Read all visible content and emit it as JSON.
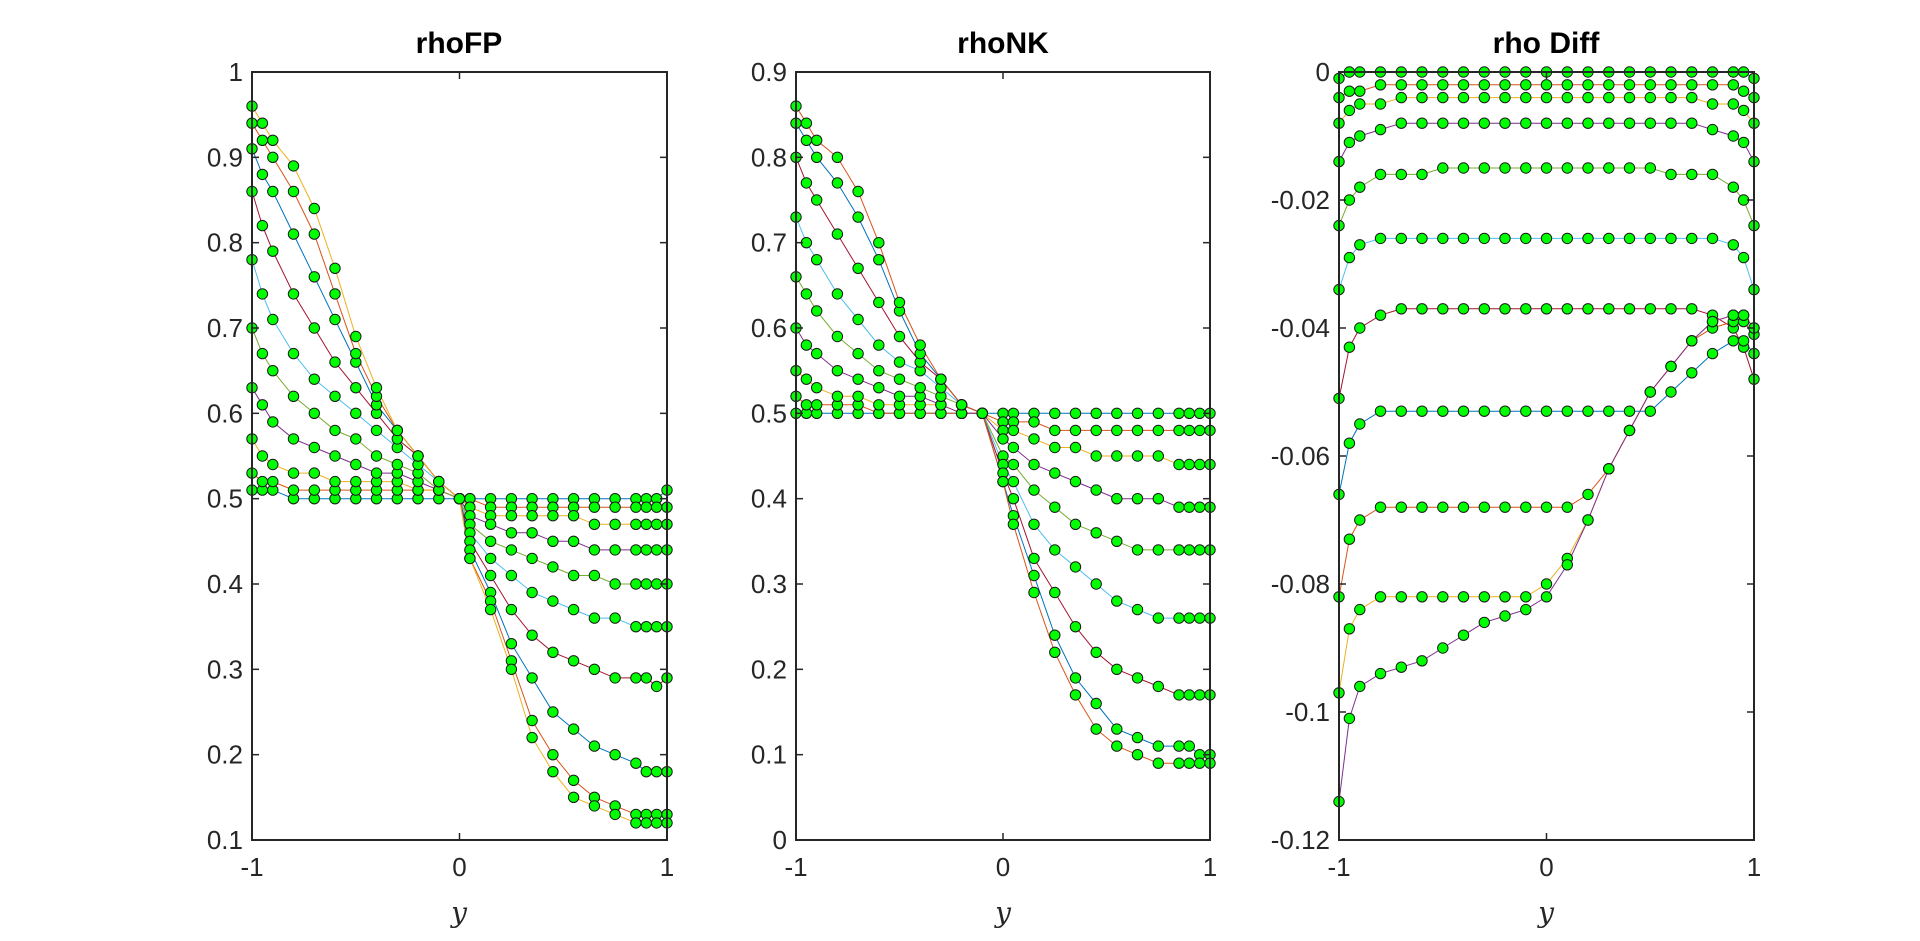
{
  "chart_data": [
    {
      "type": "line",
      "title": "rhoFP",
      "xlabel": "y",
      "ylabel": "",
      "xlim": [
        -1,
        1
      ],
      "ylim": [
        0.1,
        1
      ],
      "xticks": [
        "-1",
        "0",
        "1"
      ],
      "yticks": [
        "0.1",
        "0.2",
        "0.3",
        "0.4",
        "0.5",
        "0.6",
        "0.7",
        "0.8",
        "0.9",
        "1"
      ],
      "grid": false,
      "marker_color": "#00ff00",
      "series_note": "",
      "x": [
        -1,
        -0.95,
        -0.9,
        -0.8,
        -0.7,
        -0.6,
        -0.5,
        -0.4,
        -0.3,
        -0.2,
        -0.1,
        0,
        0.05,
        0.15,
        0.25,
        0.35,
        0.45,
        0.55,
        0.65,
        0.75,
        0.85,
        0.9,
        0.95,
        1
      ],
      "series": [
        {
          "values": [
            0.51,
            0.51,
            0.51,
            0.5,
            0.5,
            0.5,
            0.5,
            0.5,
            0.5,
            0.5,
            0.5,
            0.5,
            0.5,
            0.5,
            0.5,
            0.5,
            0.5,
            0.5,
            0.5,
            0.5,
            0.5,
            0.5,
            0.5,
            0.51
          ]
        },
        {
          "values": [
            0.53,
            0.52,
            0.52,
            0.51,
            0.51,
            0.51,
            0.51,
            0.51,
            0.51,
            0.51,
            0.51,
            0.5,
            0.5,
            0.49,
            0.49,
            0.49,
            0.49,
            0.49,
            0.49,
            0.49,
            0.49,
            0.49,
            0.49,
            0.49
          ]
        },
        {
          "values": [
            0.57,
            0.55,
            0.54,
            0.53,
            0.53,
            0.52,
            0.52,
            0.52,
            0.52,
            0.51,
            0.51,
            0.5,
            0.49,
            0.48,
            0.48,
            0.48,
            0.48,
            0.48,
            0.47,
            0.47,
            0.47,
            0.47,
            0.47,
            0.47
          ]
        },
        {
          "values": [
            0.63,
            0.61,
            0.59,
            0.57,
            0.56,
            0.55,
            0.54,
            0.53,
            0.53,
            0.52,
            0.51,
            0.5,
            0.48,
            0.47,
            0.46,
            0.46,
            0.45,
            0.45,
            0.44,
            0.44,
            0.44,
            0.44,
            0.44,
            0.44
          ]
        },
        {
          "values": [
            0.7,
            0.67,
            0.65,
            0.62,
            0.6,
            0.58,
            0.57,
            0.55,
            0.54,
            0.53,
            0.51,
            0.5,
            0.47,
            0.45,
            0.44,
            0.43,
            0.42,
            0.41,
            0.41,
            0.4,
            0.4,
            0.4,
            0.4,
            0.4
          ]
        },
        {
          "values": [
            0.78,
            0.74,
            0.71,
            0.67,
            0.64,
            0.62,
            0.6,
            0.58,
            0.56,
            0.54,
            0.52,
            0.5,
            0.46,
            0.43,
            0.41,
            0.39,
            0.38,
            0.37,
            0.36,
            0.36,
            0.35,
            0.35,
            0.35,
            0.35
          ]
        },
        {
          "values": [
            0.86,
            0.82,
            0.79,
            0.74,
            0.7,
            0.66,
            0.63,
            0.6,
            0.57,
            0.55,
            0.52,
            0.5,
            0.45,
            0.41,
            0.37,
            0.34,
            0.32,
            0.31,
            0.3,
            0.29,
            0.29,
            0.29,
            0.28,
            0.29
          ]
        },
        {
          "values": [
            0.91,
            0.88,
            0.86,
            0.81,
            0.76,
            0.71,
            0.66,
            0.61,
            0.58,
            0.55,
            0.52,
            0.5,
            0.44,
            0.39,
            0.33,
            0.29,
            0.25,
            0.23,
            0.21,
            0.2,
            0.19,
            0.18,
            0.18,
            0.18
          ]
        },
        {
          "values": [
            0.94,
            0.92,
            0.9,
            0.86,
            0.81,
            0.74,
            0.67,
            0.62,
            0.58,
            0.55,
            0.52,
            0.5,
            0.43,
            0.38,
            0.31,
            0.24,
            0.2,
            0.17,
            0.15,
            0.14,
            0.13,
            0.13,
            0.13,
            0.13
          ]
        },
        {
          "values": [
            0.96,
            0.94,
            0.92,
            0.89,
            0.84,
            0.77,
            0.69,
            0.63,
            0.58,
            0.55,
            0.52,
            0.5,
            0.43,
            0.37,
            0.3,
            0.22,
            0.18,
            0.15,
            0.14,
            0.13,
            0.12,
            0.12,
            0.12,
            0.12
          ]
        }
      ]
    },
    {
      "type": "line",
      "title": "rhoNK",
      "xlabel": "y",
      "ylabel": "",
      "xlim": [
        -1,
        1
      ],
      "ylim": [
        0,
        0.9
      ],
      "xticks": [
        "-1",
        "0",
        "1"
      ],
      "yticks": [
        "0",
        "0.1",
        "0.2",
        "0.3",
        "0.4",
        "0.5",
        "0.6",
        "0.7",
        "0.8",
        "0.9"
      ],
      "grid": false,
      "marker_color": "#00ff00",
      "x": [
        -1,
        -0.95,
        -0.9,
        -0.8,
        -0.7,
        -0.6,
        -0.5,
        -0.4,
        -0.3,
        -0.2,
        -0.1,
        0,
        0.05,
        0.15,
        0.25,
        0.35,
        0.45,
        0.55,
        0.65,
        0.75,
        0.85,
        0.9,
        0.95,
        1
      ],
      "series": [
        {
          "values": [
            0.5,
            0.5,
            0.5,
            0.5,
            0.5,
            0.5,
            0.5,
            0.5,
            0.5,
            0.5,
            0.5,
            0.5,
            0.5,
            0.5,
            0.5,
            0.5,
            0.5,
            0.5,
            0.5,
            0.5,
            0.5,
            0.5,
            0.5,
            0.5
          ]
        },
        {
          "values": [
            0.52,
            0.51,
            0.51,
            0.51,
            0.51,
            0.5,
            0.5,
            0.5,
            0.5,
            0.5,
            0.5,
            0.49,
            0.49,
            0.49,
            0.48,
            0.48,
            0.48,
            0.48,
            0.48,
            0.48,
            0.48,
            0.48,
            0.48,
            0.48
          ]
        },
        {
          "values": [
            0.55,
            0.54,
            0.53,
            0.52,
            0.52,
            0.51,
            0.51,
            0.51,
            0.51,
            0.5,
            0.5,
            0.48,
            0.48,
            0.47,
            0.46,
            0.46,
            0.45,
            0.45,
            0.45,
            0.45,
            0.44,
            0.44,
            0.44,
            0.44
          ]
        },
        {
          "values": [
            0.6,
            0.58,
            0.57,
            0.55,
            0.54,
            0.53,
            0.52,
            0.52,
            0.51,
            0.5,
            0.5,
            0.47,
            0.46,
            0.44,
            0.43,
            0.42,
            0.41,
            0.4,
            0.4,
            0.4,
            0.39,
            0.39,
            0.39,
            0.39
          ]
        },
        {
          "values": [
            0.66,
            0.64,
            0.62,
            0.59,
            0.57,
            0.55,
            0.54,
            0.53,
            0.52,
            0.51,
            0.5,
            0.45,
            0.44,
            0.41,
            0.39,
            0.37,
            0.36,
            0.35,
            0.34,
            0.34,
            0.34,
            0.34,
            0.34,
            0.34
          ]
        },
        {
          "values": [
            0.73,
            0.7,
            0.68,
            0.64,
            0.61,
            0.58,
            0.56,
            0.55,
            0.53,
            0.51,
            0.5,
            0.44,
            0.42,
            0.37,
            0.34,
            0.32,
            0.3,
            0.28,
            0.27,
            0.26,
            0.26,
            0.26,
            0.26,
            0.26
          ]
        },
        {
          "values": [
            0.8,
            0.77,
            0.75,
            0.71,
            0.67,
            0.63,
            0.59,
            0.56,
            0.54,
            0.51,
            0.5,
            0.43,
            0.4,
            0.33,
            0.29,
            0.25,
            0.22,
            0.2,
            0.19,
            0.18,
            0.17,
            0.17,
            0.17,
            0.17
          ]
        },
        {
          "values": [
            0.84,
            0.82,
            0.8,
            0.77,
            0.73,
            0.68,
            0.62,
            0.57,
            0.54,
            0.51,
            0.5,
            0.42,
            0.38,
            0.31,
            0.24,
            0.19,
            0.16,
            0.13,
            0.12,
            0.11,
            0.11,
            0.11,
            0.1,
            0.1
          ]
        },
        {
          "values": [
            0.86,
            0.84,
            0.82,
            0.8,
            0.76,
            0.7,
            0.63,
            0.58,
            0.54,
            0.51,
            0.5,
            0.42,
            0.37,
            0.29,
            0.22,
            0.17,
            0.13,
            0.11,
            0.1,
            0.09,
            0.09,
            0.09,
            0.09,
            0.09
          ]
        }
      ]
    },
    {
      "type": "line",
      "title": "rho Diff",
      "xlabel": "y",
      "ylabel": "",
      "xlim": [
        -1,
        1
      ],
      "ylim": [
        -0.12,
        0
      ],
      "xticks": [
        "-1",
        "0",
        "1"
      ],
      "yticks": [
        "-0.12",
        "-0.1",
        "-0.08",
        "-0.06",
        "-0.04",
        "-0.02",
        "0"
      ],
      "grid": false,
      "marker_color": "#00ff00",
      "x": [
        -1,
        -0.95,
        -0.9,
        -0.8,
        -0.7,
        -0.6,
        -0.5,
        -0.4,
        -0.3,
        -0.2,
        -0.1,
        0,
        0.1,
        0.2,
        0.3,
        0.4,
        0.5,
        0.6,
        0.7,
        0.8,
        0.9,
        0.95,
        1
      ],
      "series": [
        {
          "values": [
            -0.001,
            0,
            0,
            0,
            0,
            0,
            0,
            0,
            0,
            0,
            0,
            0,
            0,
            0,
            0,
            0,
            0,
            0,
            0,
            0,
            0,
            0,
            -0.001
          ]
        },
        {
          "values": [
            -0.004,
            -0.003,
            -0.003,
            -0.002,
            -0.002,
            -0.002,
            -0.002,
            -0.002,
            -0.002,
            -0.002,
            -0.002,
            -0.002,
            -0.002,
            -0.002,
            -0.002,
            -0.002,
            -0.002,
            -0.002,
            -0.002,
            -0.002,
            -0.002,
            -0.003,
            -0.004
          ]
        },
        {
          "values": [
            -0.008,
            -0.006,
            -0.005,
            -0.005,
            -0.004,
            -0.004,
            -0.004,
            -0.004,
            -0.004,
            -0.004,
            -0.004,
            -0.004,
            -0.004,
            -0.004,
            -0.004,
            -0.004,
            -0.004,
            -0.004,
            -0.004,
            -0.005,
            -0.005,
            -0.006,
            -0.008
          ]
        },
        {
          "values": [
            -0.014,
            -0.011,
            -0.01,
            -0.009,
            -0.008,
            -0.008,
            -0.008,
            -0.008,
            -0.008,
            -0.008,
            -0.008,
            -0.008,
            -0.008,
            -0.008,
            -0.008,
            -0.008,
            -0.008,
            -0.008,
            -0.008,
            -0.009,
            -0.01,
            -0.011,
            -0.014
          ]
        },
        {
          "values": [
            -0.024,
            -0.02,
            -0.018,
            -0.016,
            -0.016,
            -0.016,
            -0.015,
            -0.015,
            -0.015,
            -0.015,
            -0.015,
            -0.015,
            -0.015,
            -0.015,
            -0.015,
            -0.015,
            -0.015,
            -0.016,
            -0.016,
            -0.016,
            -0.018,
            -0.02,
            -0.024
          ]
        },
        {
          "values": [
            -0.034,
            -0.029,
            -0.027,
            -0.026,
            -0.026,
            -0.026,
            -0.026,
            -0.026,
            -0.026,
            -0.026,
            -0.026,
            -0.026,
            -0.026,
            -0.026,
            -0.026,
            -0.026,
            -0.026,
            -0.026,
            -0.026,
            -0.026,
            -0.027,
            -0.029,
            -0.034
          ]
        },
        {
          "values": [
            -0.051,
            -0.043,
            -0.04,
            -0.038,
            -0.037,
            -0.037,
            -0.037,
            -0.037,
            -0.037,
            -0.037,
            -0.037,
            -0.037,
            -0.037,
            -0.037,
            -0.037,
            -0.037,
            -0.037,
            -0.037,
            -0.037,
            -0.038,
            -0.04,
            -0.043,
            -0.048
          ]
        },
        {
          "values": [
            -0.066,
            -0.058,
            -0.055,
            -0.053,
            -0.053,
            -0.053,
            -0.053,
            -0.053,
            -0.053,
            -0.053,
            -0.053,
            -0.053,
            -0.053,
            -0.053,
            -0.053,
            -0.053,
            -0.053,
            -0.05,
            -0.047,
            -0.044,
            -0.042,
            -0.042,
            -0.044
          ]
        },
        {
          "values": [
            -0.082,
            -0.073,
            -0.07,
            -0.068,
            -0.068,
            -0.068,
            -0.068,
            -0.068,
            -0.068,
            -0.068,
            -0.068,
            -0.068,
            -0.068,
            -0.066,
            -0.062,
            -0.056,
            -0.05,
            -0.046,
            -0.042,
            -0.04,
            -0.039,
            -0.039,
            -0.041
          ]
        },
        {
          "values": [
            -0.097,
            -0.087,
            -0.084,
            -0.082,
            -0.082,
            -0.082,
            -0.082,
            -0.082,
            -0.082,
            -0.082,
            -0.082,
            -0.08,
            -0.076,
            -0.07,
            -0.062,
            -0.056,
            -0.05,
            -0.046,
            -0.042,
            -0.039,
            -0.038,
            -0.038,
            -0.04
          ]
        },
        {
          "values": [
            -0.114,
            -0.101,
            -0.096,
            -0.094,
            -0.093,
            -0.092,
            -0.09,
            -0.088,
            -0.086,
            -0.085,
            -0.084,
            -0.082,
            -0.077,
            -0.07,
            -0.062,
            -0.056,
            -0.05,
            -0.046,
            -0.042,
            -0.039,
            -0.038,
            -0.038,
            -0.04
          ]
        }
      ]
    }
  ]
}
